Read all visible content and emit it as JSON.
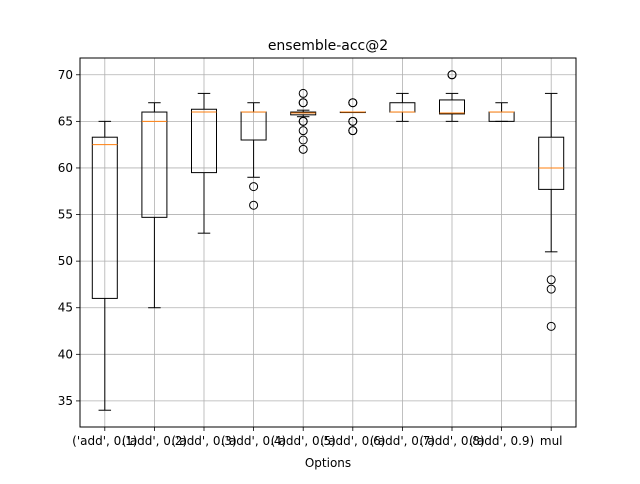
{
  "chart_data": {
    "type": "box",
    "title": "ensemble-acc@2",
    "xlabel": "Options",
    "ylabel": "",
    "categories": [
      "('add', 0.1)",
      "('add', 0.2)",
      "('add', 0.3)",
      "('add', 0.4)",
      "('add', 0.5)",
      "('add', 0.6)",
      "('add', 0.7)",
      "('add', 0.8)",
      "('add', 0.9)",
      "mul"
    ],
    "ylim": [
      32.2,
      71.8
    ],
    "yticks": [
      35,
      40,
      45,
      50,
      55,
      60,
      65,
      70
    ],
    "grid": true,
    "boxes": [
      {
        "whislo": 34.0,
        "q1": 46.0,
        "med": 62.5,
        "q3": 63.3,
        "whishi": 65.0,
        "fliers": []
      },
      {
        "whislo": 45.0,
        "q1": 54.7,
        "med": 65.0,
        "q3": 66.0,
        "whishi": 67.0,
        "fliers": []
      },
      {
        "whislo": 53.0,
        "q1": 59.5,
        "med": 66.0,
        "q3": 66.3,
        "whishi": 68.0,
        "fliers": []
      },
      {
        "whislo": 59.0,
        "q1": 63.0,
        "med": 66.0,
        "q3": 66.0,
        "whishi": 67.0,
        "fliers": [
          58.0,
          56.0
        ]
      },
      {
        "whislo": 65.5,
        "q1": 65.7,
        "med": 65.9,
        "q3": 66.0,
        "whishi": 66.2,
        "fliers": [
          68.0,
          67.0,
          67.0,
          65.0,
          65.0,
          64.0,
          63.0,
          62.0
        ]
      },
      {
        "whislo": 66.0,
        "q1": 66.0,
        "med": 66.0,
        "q3": 66.0,
        "whishi": 66.0,
        "fliers": [
          67.0,
          67.0,
          65.0,
          65.0,
          64.0,
          64.0
        ]
      },
      {
        "whislo": 65.0,
        "q1": 66.0,
        "med": 66.0,
        "q3": 67.0,
        "whishi": 68.0,
        "fliers": []
      },
      {
        "whislo": 65.0,
        "q1": 65.8,
        "med": 65.9,
        "q3": 67.3,
        "whishi": 68.0,
        "fliers": [
          70.0,
          70.0
        ]
      },
      {
        "whislo": 65.0,
        "q1": 65.0,
        "med": 66.0,
        "q3": 66.0,
        "whishi": 67.0,
        "fliers": []
      },
      {
        "whislo": 51.0,
        "q1": 57.7,
        "med": 60.0,
        "q3": 63.3,
        "whishi": 68.0,
        "fliers": [
          48.0,
          47.0,
          43.0
        ]
      }
    ],
    "colors": {
      "box": "#000000",
      "median": "#ff7f0e",
      "grid": "#b0b0b0",
      "flier": "#000000"
    }
  }
}
